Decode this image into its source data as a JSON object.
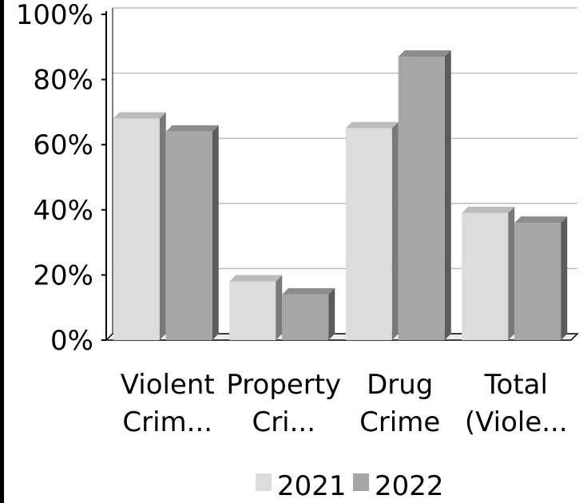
{
  "chart_data": {
    "type": "bar",
    "categories": [
      [
        "Violent",
        "Crim..."
      ],
      [
        "Property",
        "Cri..."
      ],
      [
        "Drug",
        "Crime"
      ],
      [
        "Total",
        "(Viole..."
      ]
    ],
    "series": [
      {
        "name": "2021",
        "values": [
          68,
          18,
          65,
          39
        ],
        "color": "#dcdcdc"
      },
      {
        "name": "2022",
        "values": [
          64,
          14,
          87,
          36
        ],
        "color": "#a6a6a6"
      }
    ],
    "y_ticks": [
      "0%",
      "20%",
      "40%",
      "60%",
      "80%",
      "100%"
    ],
    "ylim": [
      0,
      100
    ],
    "grid": true,
    "legend_position": "bottom",
    "style": "3d-bar"
  }
}
